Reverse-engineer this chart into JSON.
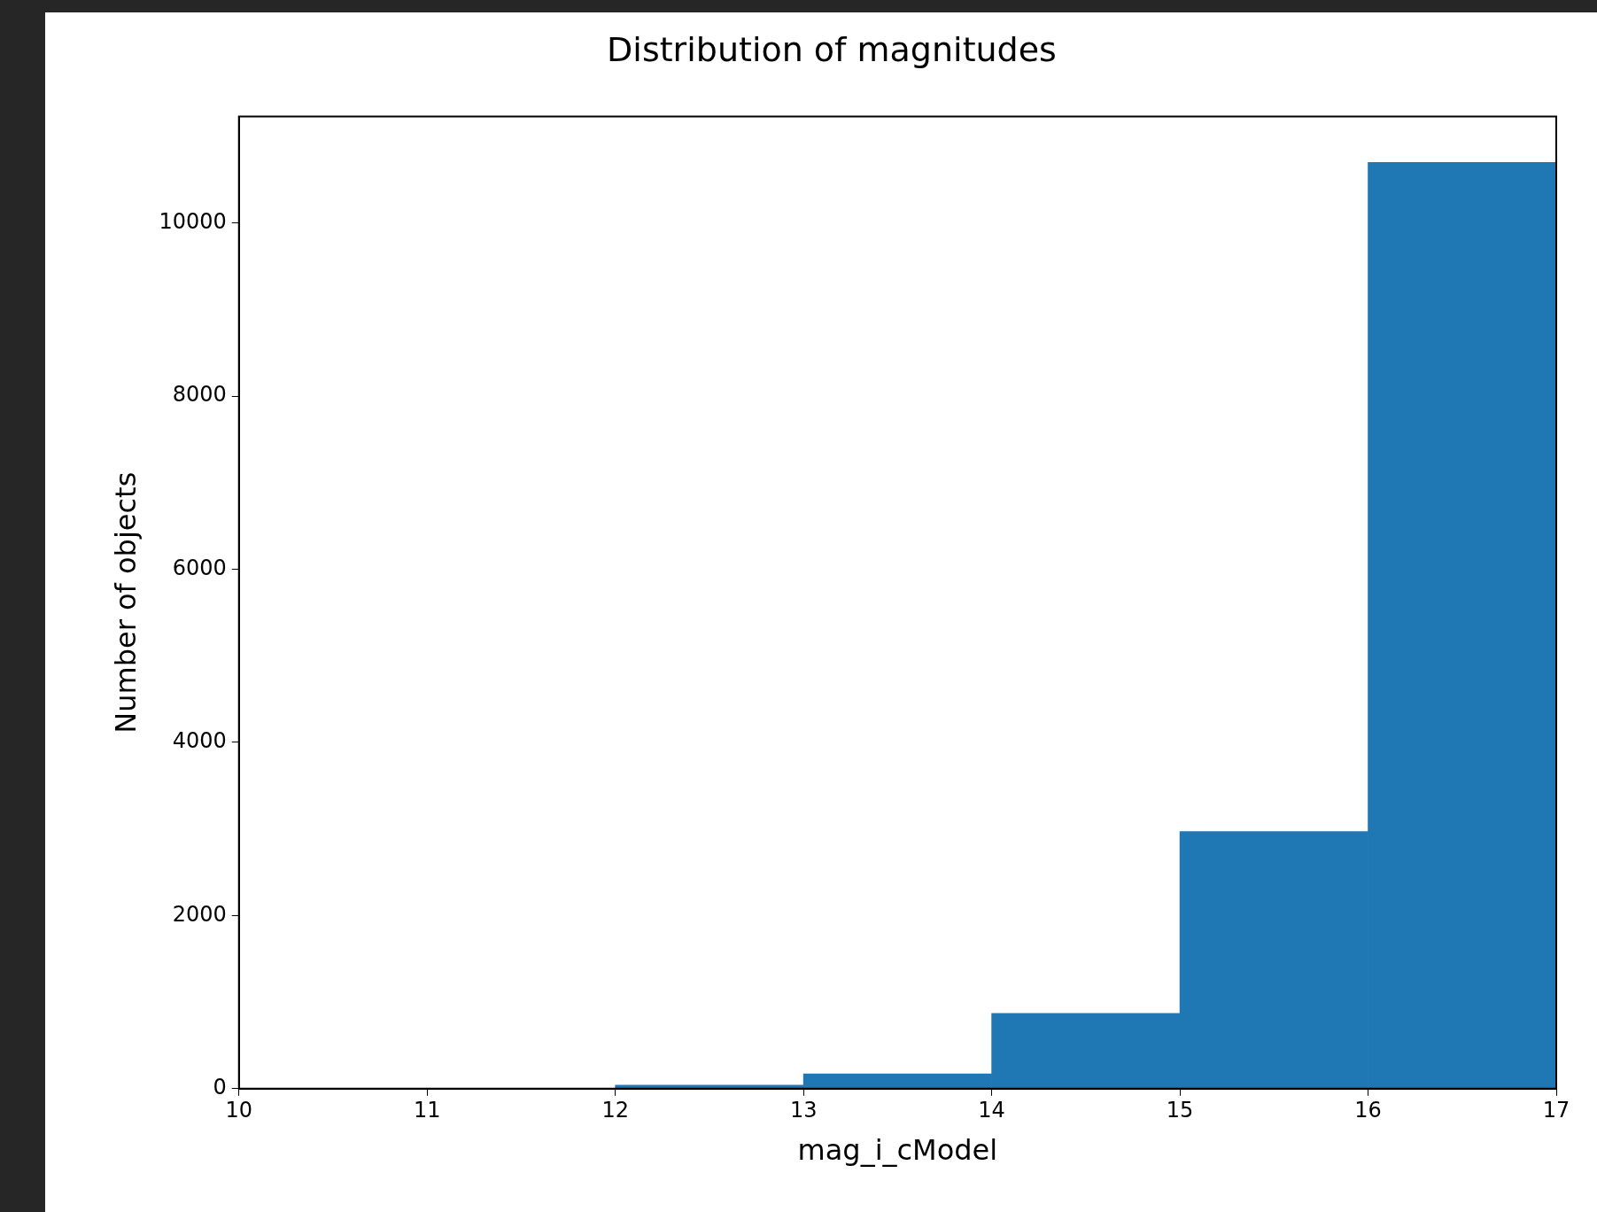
{
  "chart_data": {
    "type": "histogram",
    "title": "Distribution of magnitudes",
    "xlabel": "mag_i_cModel",
    "ylabel": "Number of objects",
    "bins": [
      10,
      11,
      12,
      13,
      14,
      15,
      16,
      17
    ],
    "values": [
      0,
      0,
      40,
      170,
      870,
      2970,
      10700
    ],
    "color": "#1f77b4",
    "xlim": [
      10,
      17
    ],
    "xticks": [
      10,
      11,
      12,
      13,
      14,
      15,
      16,
      17
    ],
    "ylim": [
      0,
      11230
    ],
    "yticks": [
      0,
      2000,
      4000,
      6000,
      8000,
      10000
    ],
    "grid": false,
    "legend": false
  }
}
